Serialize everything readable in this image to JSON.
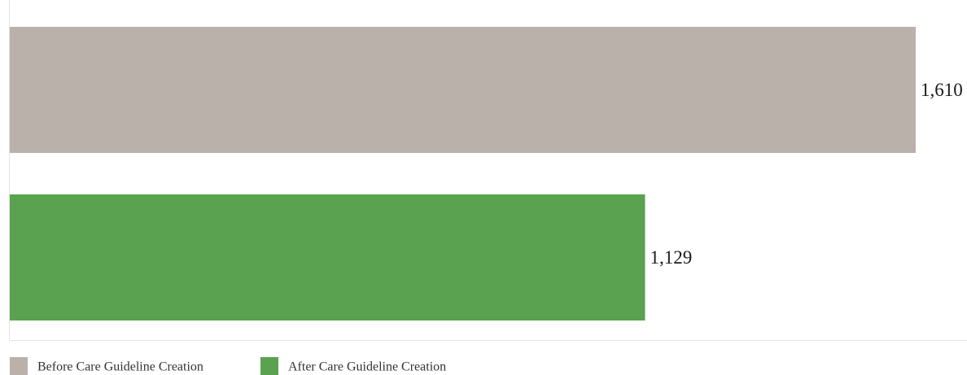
{
  "chart_data": {
    "type": "bar",
    "orientation": "horizontal",
    "categories": [
      "Before Care Guideline Creation",
      "After Care Guideline Creation"
    ],
    "values": [
      1610,
      1129
    ],
    "value_labels": [
      "1,610",
      "1,129"
    ],
    "colors": [
      "#bab1ab",
      "#5aa24f"
    ],
    "legend": {
      "placement": "bottom-left",
      "entries": [
        "Before Care Guideline Creation",
        "After Care Guideline Creation"
      ]
    },
    "title": "",
    "xlabel": "",
    "ylabel": "",
    "xlim": [
      0,
      1610
    ],
    "grid": false,
    "axis_line_color": "#e3e3e3"
  }
}
